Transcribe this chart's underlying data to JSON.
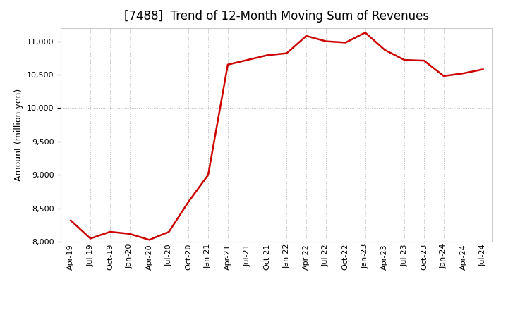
{
  "title": "[7488]  Trend of 12-Month Moving Sum of Revenues",
  "ylabel": "Amount (million yen)",
  "line_color": "#cc0000",
  "background_color": "#ffffff",
  "plot_bg_color": "#ffffff",
  "grid_color": "#bbbbbb",
  "ylim": [
    8000,
    11200
  ],
  "yticks": [
    8000,
    8500,
    9000,
    9500,
    10000,
    10500,
    11000
  ],
  "values": [
    8320,
    8050,
    8150,
    8120,
    8030,
    8150,
    8600,
    9000,
    10650,
    10720,
    10790,
    10820,
    11080,
    11000,
    10980,
    11130,
    10870,
    10720,
    10710,
    10480,
    10520,
    10580
  ],
  "xtick_labels": [
    "Apr-19",
    "Jul-19",
    "Oct-19",
    "Jan-20",
    "Apr-20",
    "Jul-20",
    "Oct-20",
    "Jan-21",
    "Apr-21",
    "Jul-21",
    "Oct-21",
    "Jan-22",
    "Apr-22",
    "Jul-22",
    "Oct-22",
    "Jan-23",
    "Apr-23",
    "Jul-23",
    "Oct-23",
    "Jan-24",
    "Apr-24",
    "Jul-24"
  ],
  "line_width": 1.8,
  "title_fontsize": 12,
  "axis_label_fontsize": 9,
  "tick_fontsize": 8,
  "title_fontweight": "normal"
}
